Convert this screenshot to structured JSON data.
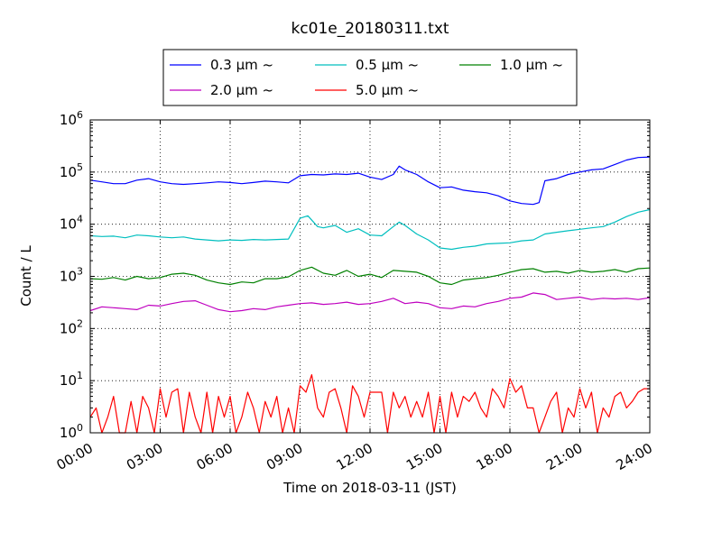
{
  "chart_data": {
    "type": "line",
    "title": "kc01e_20180311.txt",
    "xlabel": "Time on 2018-03-11 (JST)",
    "ylabel": "Count / L",
    "xlim": [
      "00:00",
      "24:00"
    ],
    "ylim": [
      1,
      1000000
    ],
    "yscale": "log",
    "grid": true,
    "legend_position": "top-center",
    "x_ticks": [
      "00:00",
      "03:00",
      "06:00",
      "09:00",
      "12:00",
      "15:00",
      "18:00",
      "21:00",
      "24:00"
    ],
    "y_ticks": [
      {
        "value": 1,
        "base": "10",
        "exp": "0"
      },
      {
        "value": 10,
        "base": "10",
        "exp": "1"
      },
      {
        "value": 100,
        "base": "10",
        "exp": "2"
      },
      {
        "value": 1000,
        "base": "10",
        "exp": "3"
      },
      {
        "value": 10000,
        "base": "10",
        "exp": "4"
      },
      {
        "value": 100000,
        "base": "10",
        "exp": "5"
      },
      {
        "value": 1000000,
        "base": "10",
        "exp": "6"
      }
    ],
    "series": [
      {
        "name": "0.3 μm ~",
        "color": "#0000ff",
        "x": [
          "00:00",
          "00:30",
          "01:00",
          "01:30",
          "02:00",
          "02:30",
          "03:00",
          "03:30",
          "04:00",
          "04:30",
          "05:00",
          "05:30",
          "06:00",
          "06:30",
          "07:00",
          "07:30",
          "08:00",
          "08:30",
          "09:00",
          "09:30",
          "10:00",
          "10:30",
          "11:00",
          "11:30",
          "12:00",
          "12:30",
          "13:00",
          "13:15",
          "13:30",
          "14:00",
          "14:30",
          "15:00",
          "15:30",
          "16:00",
          "16:30",
          "17:00",
          "17:30",
          "18:00",
          "18:30",
          "19:00",
          "19:15",
          "19:30",
          "20:00",
          "20:30",
          "21:00",
          "21:30",
          "22:00",
          "22:30",
          "23:00",
          "23:30",
          "24:00"
        ],
        "y": [
          70000,
          65000,
          60000,
          60000,
          70000,
          75000,
          65000,
          60000,
          58000,
          60000,
          62000,
          65000,
          63000,
          60000,
          63000,
          67000,
          65000,
          62000,
          85000,
          90000,
          88000,
          92000,
          90000,
          95000,
          80000,
          72000,
          90000,
          130000,
          110000,
          90000,
          65000,
          50000,
          52000,
          45000,
          42000,
          40000,
          35000,
          28000,
          25000,
          24000,
          26000,
          68000,
          75000,
          90000,
          100000,
          110000,
          115000,
          140000,
          170000,
          190000,
          195000
        ]
      },
      {
        "name": "0.5 μm ~",
        "color": "#00bfbf",
        "x": [
          "00:00",
          "00:30",
          "01:00",
          "01:30",
          "02:00",
          "02:30",
          "03:00",
          "03:30",
          "04:00",
          "04:30",
          "05:00",
          "05:30",
          "06:00",
          "06:30",
          "07:00",
          "07:30",
          "08:00",
          "08:30",
          "09:00",
          "09:20",
          "09:45",
          "10:00",
          "10:30",
          "11:00",
          "11:30",
          "12:00",
          "12:30",
          "13:00",
          "13:15",
          "13:30",
          "14:00",
          "14:30",
          "15:00",
          "15:30",
          "16:00",
          "16:30",
          "17:00",
          "17:30",
          "18:00",
          "18:30",
          "19:00",
          "19:30",
          "20:00",
          "20:30",
          "21:00",
          "21:30",
          "22:00",
          "22:30",
          "23:00",
          "23:30",
          "24:00"
        ],
        "y": [
          6000,
          5800,
          5900,
          5500,
          6200,
          6000,
          5700,
          5500,
          5700,
          5200,
          5000,
          4800,
          5000,
          4900,
          5100,
          5000,
          5100,
          5200,
          13000,
          14500,
          9000,
          8500,
          9500,
          7000,
          8200,
          6200,
          6000,
          9000,
          11000,
          9500,
          6500,
          5000,
          3500,
          3300,
          3600,
          3800,
          4200,
          4300,
          4400,
          4800,
          5000,
          6500,
          7000,
          7500,
          8000,
          8500,
          9000,
          11000,
          14000,
          17000,
          19000
        ]
      },
      {
        "name": "1.0 μm ~",
        "color": "#008000",
        "x": [
          "00:00",
          "00:30",
          "01:00",
          "01:30",
          "02:00",
          "02:30",
          "03:00",
          "03:30",
          "04:00",
          "04:30",
          "05:00",
          "05:30",
          "06:00",
          "06:30",
          "07:00",
          "07:30",
          "08:00",
          "08:30",
          "09:00",
          "09:30",
          "10:00",
          "10:30",
          "11:00",
          "11:30",
          "12:00",
          "12:30",
          "13:00",
          "13:30",
          "14:00",
          "14:30",
          "15:00",
          "15:30",
          "16:00",
          "16:30",
          "17:00",
          "17:30",
          "18:00",
          "18:30",
          "19:00",
          "19:30",
          "20:00",
          "20:30",
          "21:00",
          "21:30",
          "22:00",
          "22:30",
          "23:00",
          "23:30",
          "24:00"
        ],
        "y": [
          900,
          880,
          950,
          850,
          1000,
          900,
          950,
          1100,
          1150,
          1050,
          850,
          750,
          700,
          780,
          750,
          900,
          900,
          980,
          1300,
          1500,
          1150,
          1050,
          1300,
          1000,
          1100,
          950,
          1300,
          1250,
          1200,
          1000,
          750,
          700,
          850,
          900,
          950,
          1050,
          1200,
          1350,
          1400,
          1200,
          1250,
          1150,
          1300,
          1200,
          1250,
          1350,
          1200,
          1400,
          1450
        ]
      },
      {
        "name": "2.0 μm ~",
        "color": "#bf00bf",
        "x": [
          "00:00",
          "00:30",
          "01:00",
          "01:30",
          "02:00",
          "02:30",
          "03:00",
          "03:30",
          "04:00",
          "04:30",
          "05:00",
          "05:30",
          "06:00",
          "06:30",
          "07:00",
          "07:30",
          "08:00",
          "08:30",
          "09:00",
          "09:30",
          "10:00",
          "10:30",
          "11:00",
          "11:30",
          "12:00",
          "12:30",
          "13:00",
          "13:30",
          "14:00",
          "14:30",
          "15:00",
          "15:30",
          "16:00",
          "16:30",
          "17:00",
          "17:30",
          "18:00",
          "18:30",
          "19:00",
          "19:30",
          "20:00",
          "20:30",
          "21:00",
          "21:30",
          "22:00",
          "22:30",
          "23:00",
          "23:30",
          "24:00"
        ],
        "y": [
          220,
          260,
          250,
          240,
          230,
          280,
          270,
          300,
          330,
          340,
          280,
          230,
          210,
          220,
          240,
          230,
          260,
          280,
          300,
          310,
          290,
          300,
          320,
          290,
          300,
          330,
          380,
          300,
          320,
          300,
          250,
          240,
          270,
          260,
          300,
          330,
          380,
          400,
          480,
          450,
          360,
          380,
          400,
          360,
          380,
          370,
          380,
          360,
          390
        ]
      },
      {
        "name": "5.0 μm ~",
        "color": "#ff0000",
        "x": [
          "00:00",
          "00:15",
          "00:30",
          "00:45",
          "01:00",
          "01:15",
          "01:30",
          "01:45",
          "02:00",
          "02:15",
          "02:30",
          "02:45",
          "03:00",
          "03:15",
          "03:30",
          "03:45",
          "04:00",
          "04:15",
          "04:30",
          "04:45",
          "05:00",
          "05:15",
          "05:30",
          "05:45",
          "06:00",
          "06:15",
          "06:30",
          "06:45",
          "07:00",
          "07:15",
          "07:30",
          "07:45",
          "08:00",
          "08:15",
          "08:30",
          "08:45",
          "09:00",
          "09:15",
          "09:30",
          "09:45",
          "10:00",
          "10:15",
          "10:30",
          "10:45",
          "11:00",
          "11:15",
          "11:30",
          "11:45",
          "12:00",
          "12:15",
          "12:30",
          "12:45",
          "13:00",
          "13:15",
          "13:30",
          "13:45",
          "14:00",
          "14:15",
          "14:30",
          "14:45",
          "15:00",
          "15:15",
          "15:30",
          "15:45",
          "16:00",
          "16:15",
          "16:30",
          "16:45",
          "17:00",
          "17:15",
          "17:30",
          "17:45",
          "18:00",
          "18:15",
          "18:30",
          "18:45",
          "19:00",
          "19:15",
          "19:30",
          "19:45",
          "20:00",
          "20:15",
          "20:30",
          "20:45",
          "21:00",
          "21:15",
          "21:30",
          "21:45",
          "22:00",
          "22:15",
          "22:30",
          "22:45",
          "23:00",
          "23:15",
          "23:30",
          "23:45",
          "24:00"
        ],
        "y": [
          2,
          3,
          1,
          2,
          5,
          1,
          1,
          4,
          1,
          5,
          3,
          1,
          7,
          2,
          6,
          7,
          1,
          6,
          2,
          1,
          6,
          1,
          5,
          2,
          5,
          1,
          2,
          6,
          3,
          1,
          4,
          2,
          5,
          1,
          3,
          1,
          8,
          6,
          13,
          3,
          2,
          6,
          7,
          3,
          1,
          8,
          5,
          2,
          6,
          6,
          6,
          1,
          6,
          3,
          5,
          2,
          4,
          2,
          6,
          1,
          5,
          1,
          6,
          2,
          5,
          4,
          6,
          3,
          2,
          7,
          5,
          3,
          11,
          6,
          8,
          3,
          3,
          1,
          2,
          4,
          6,
          1,
          3,
          2,
          7,
          3,
          6,
          1,
          3,
          2,
          5,
          6,
          3,
          4,
          6,
          7,
          7
        ]
      }
    ]
  }
}
